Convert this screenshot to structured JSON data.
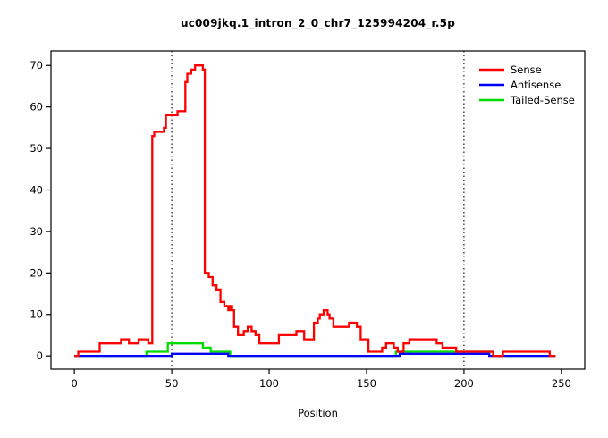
{
  "chart_data": {
    "type": "line",
    "line_style": "step",
    "title": "uc009jkq.1_intron_2_0_chr7_125994204_r.5p",
    "xlabel": "Position",
    "ylabel": "",
    "xlim": [
      -12,
      262
    ],
    "ylim": [
      -3.2,
      73.5
    ],
    "x_ticks": [
      0,
      50,
      100,
      150,
      200,
      250
    ],
    "y_ticks": [
      0,
      10,
      20,
      30,
      40,
      50,
      60,
      70
    ],
    "grid": false,
    "legend_position": "top-right",
    "vlines": {
      "positions": [
        50,
        200
      ],
      "style": "dotted",
      "color": "#000000"
    },
    "series": [
      {
        "name": "Sense",
        "color": "#FF0000",
        "points": [
          [
            0,
            0
          ],
          [
            2,
            1
          ],
          [
            13,
            3
          ],
          [
            20,
            3
          ],
          [
            24,
            4
          ],
          [
            28,
            3
          ],
          [
            33,
            4
          ],
          [
            38,
            3
          ],
          [
            40,
            53
          ],
          [
            41,
            54
          ],
          [
            44,
            54
          ],
          [
            46,
            55
          ],
          [
            47,
            58
          ],
          [
            52,
            58
          ],
          [
            53,
            59
          ],
          [
            56,
            59
          ],
          [
            57,
            66
          ],
          [
            58,
            68
          ],
          [
            60,
            69
          ],
          [
            62,
            70
          ],
          [
            65,
            70
          ],
          [
            66,
            69
          ],
          [
            67,
            20
          ],
          [
            69,
            19
          ],
          [
            71,
            17
          ],
          [
            73,
            16
          ],
          [
            75,
            13
          ],
          [
            77,
            12
          ],
          [
            79,
            11
          ],
          [
            80,
            12
          ],
          [
            81,
            11
          ],
          [
            82,
            7
          ],
          [
            84,
            5
          ],
          [
            87,
            6
          ],
          [
            89,
            7
          ],
          [
            91,
            6
          ],
          [
            93,
            5
          ],
          [
            95,
            3
          ],
          [
            103,
            3
          ],
          [
            105,
            5
          ],
          [
            112,
            5
          ],
          [
            114,
            6
          ],
          [
            117,
            6
          ],
          [
            118,
            4
          ],
          [
            122,
            4
          ],
          [
            123,
            8
          ],
          [
            125,
            9
          ],
          [
            126,
            10
          ],
          [
            128,
            11
          ],
          [
            130,
            10
          ],
          [
            131,
            9
          ],
          [
            133,
            7
          ],
          [
            140,
            7
          ],
          [
            141,
            8
          ],
          [
            144,
            8
          ],
          [
            145,
            7
          ],
          [
            147,
            4
          ],
          [
            150,
            4
          ],
          [
            151,
            1
          ],
          [
            157,
            1
          ],
          [
            158,
            2
          ],
          [
            160,
            3
          ],
          [
            163,
            3
          ],
          [
            164,
            2
          ],
          [
            166,
            1
          ],
          [
            168,
            1
          ],
          [
            169,
            3
          ],
          [
            172,
            4
          ],
          [
            185,
            4
          ],
          [
            186,
            3
          ],
          [
            188,
            3
          ],
          [
            189,
            2
          ],
          [
            195,
            2
          ],
          [
            196,
            1
          ],
          [
            213,
            1
          ],
          [
            215,
            0
          ],
          [
            219,
            0
          ],
          [
            220,
            1
          ],
          [
            243,
            1
          ],
          [
            244,
            0
          ],
          [
            247,
            0
          ]
        ]
      },
      {
        "name": "Antisense",
        "color": "#0000FF",
        "points": [
          [
            0,
            0
          ],
          [
            49,
            0
          ],
          [
            50,
            0.5
          ],
          [
            78,
            0.5
          ],
          [
            79,
            0
          ],
          [
            166,
            0
          ],
          [
            167,
            0.5
          ],
          [
            212,
            0.5
          ],
          [
            213,
            0
          ],
          [
            247,
            0
          ]
        ]
      },
      {
        "name": "Tailed-Sense",
        "color": "#00DC00",
        "points": [
          [
            0,
            0
          ],
          [
            36,
            0
          ],
          [
            37,
            1
          ],
          [
            47,
            1
          ],
          [
            48,
            3
          ],
          [
            65,
            3
          ],
          [
            66,
            2
          ],
          [
            69,
            2
          ],
          [
            70,
            1
          ],
          [
            79,
            1
          ],
          [
            80,
            0
          ],
          [
            164,
            0
          ],
          [
            165,
            1
          ],
          [
            214,
            1
          ],
          [
            215,
            0
          ],
          [
            247,
            0
          ]
        ]
      }
    ]
  }
}
